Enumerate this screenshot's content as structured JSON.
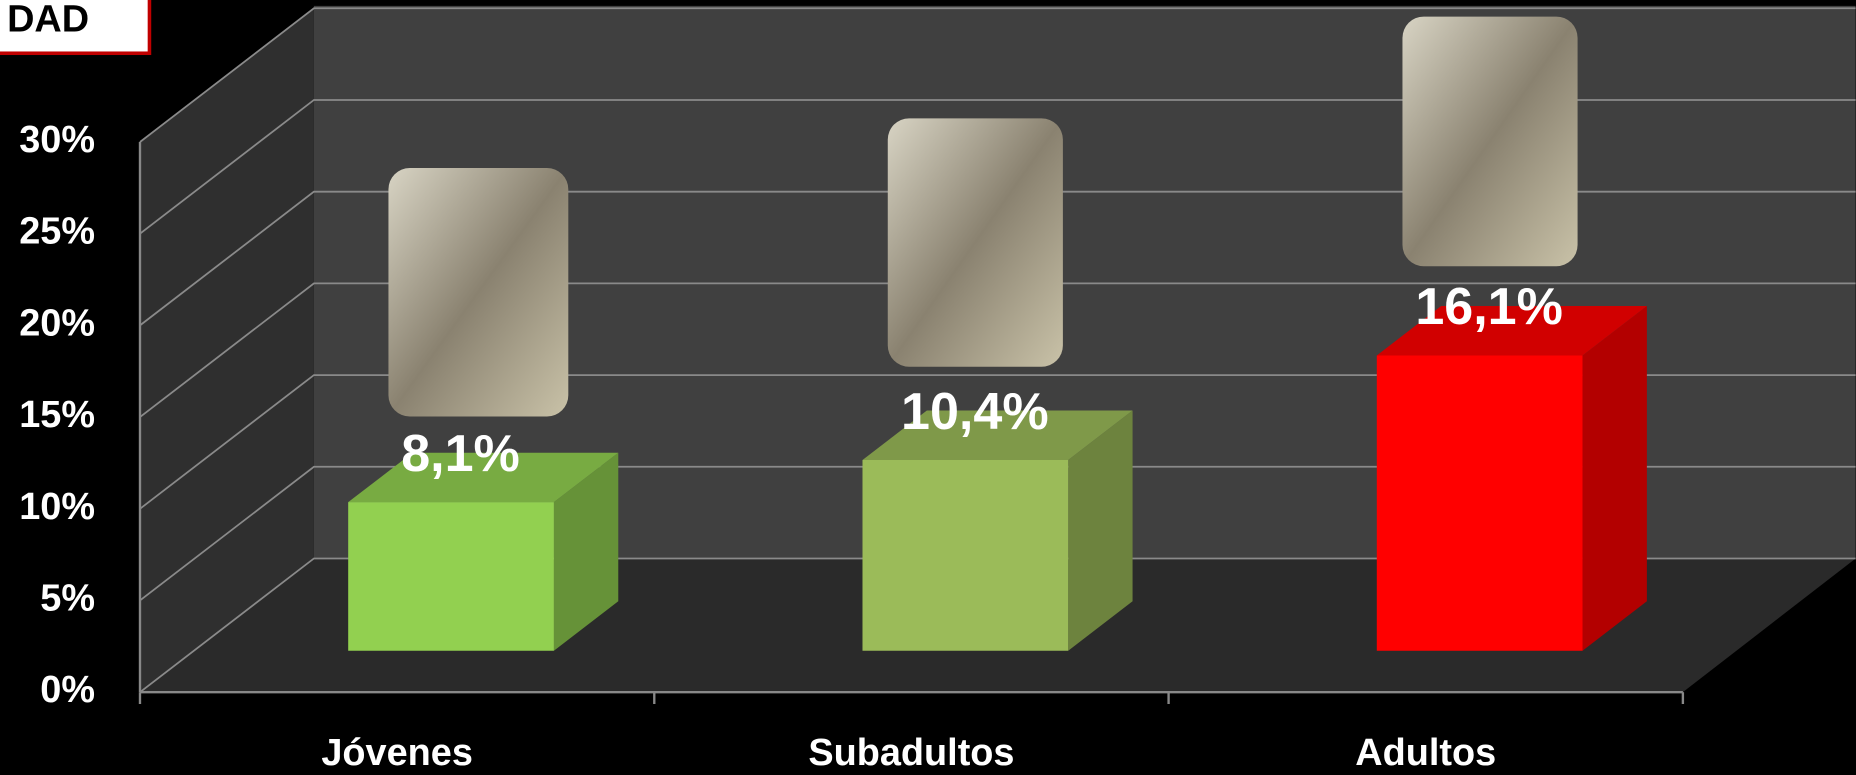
{
  "chart_data": {
    "type": "bar3d",
    "title": "DAD",
    "categories": [
      "Jóvenes",
      "Subadultos",
      "Adultos"
    ],
    "values": [
      8.1,
      10.4,
      16.1
    ],
    "value_labels": [
      "8,1%",
      "10,4%",
      "16,1%"
    ],
    "colors": [
      "#92d050",
      "#9bbb59",
      "#ff0000"
    ],
    "ylim": [
      0,
      30
    ],
    "yticks": [
      {
        "value": 0,
        "label": "0%"
      },
      {
        "value": 5,
        "label": "5%"
      },
      {
        "value": 10,
        "label": "10%"
      },
      {
        "value": 15,
        "label": "15%"
      },
      {
        "value": 20,
        "label": "20%"
      },
      {
        "value": 25,
        "label": "25%"
      },
      {
        "value": 30,
        "label": "30%"
      }
    ],
    "grid": true
  }
}
